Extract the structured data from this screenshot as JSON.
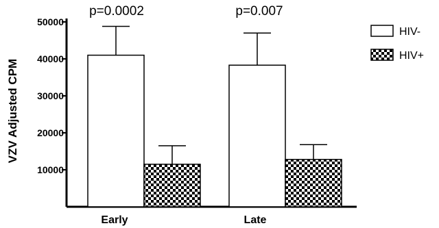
{
  "chart_data": {
    "type": "bar",
    "ylabel": "VZV Adjusted CPM",
    "xlabel": "",
    "ylim": [
      0,
      50000
    ],
    "yticks": [
      10000,
      20000,
      30000,
      40000,
      50000
    ],
    "categories": [
      "Early",
      "Late"
    ],
    "series": [
      {
        "name": "HIV-",
        "values": [
          41000,
          38300
        ],
        "error": [
          7800,
          8700
        ],
        "fill": "white"
      },
      {
        "name": "HIV+",
        "values": [
          11500,
          12800
        ],
        "error": [
          5000,
          4000
        ],
        "fill": "checker"
      }
    ],
    "annotations": [
      "p=0.0002",
      "p=0.007"
    ],
    "legend": "right",
    "grid": false,
    "colors": {
      "axis": "#000000",
      "bar_fill": "#ffffff",
      "pattern_dark": "#000000",
      "pattern_light": "#ffffff"
    }
  }
}
